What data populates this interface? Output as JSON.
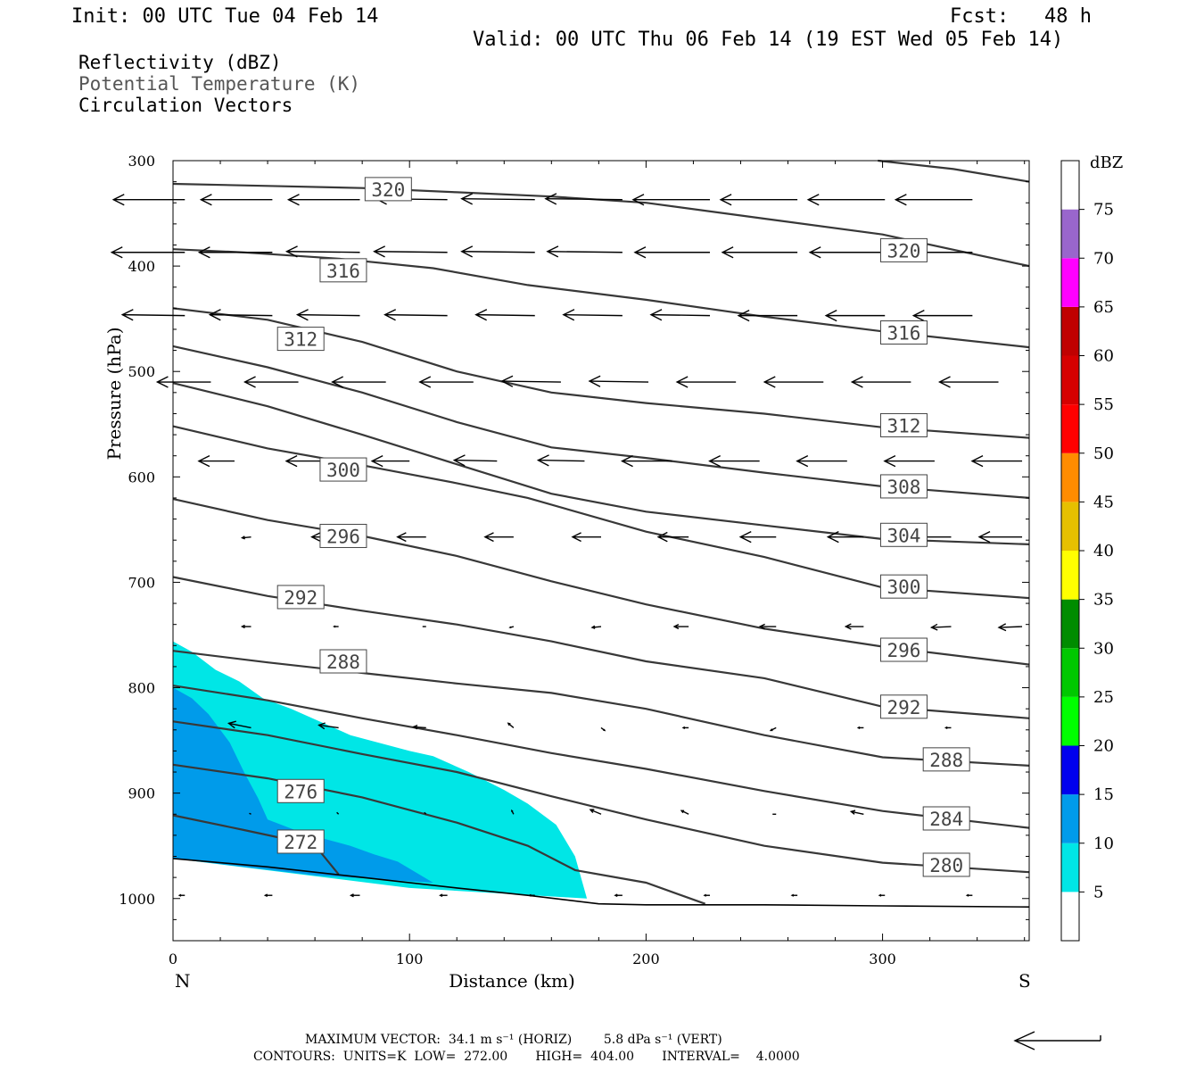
{
  "header": {
    "init": "Init: 00 UTC Tue 04 Feb 14",
    "fcst": "Fcst:   48 h",
    "valid": "Valid: 00 UTC Thu 06 Feb 14 (19 EST Wed 05 Feb 14)"
  },
  "fields": [
    {
      "label": "Reflectivity (dBZ)",
      "color": "#000000"
    },
    {
      "label": "Potential Temperature (K)",
      "color": "#555555"
    },
    {
      "label": "Circulation Vectors",
      "color": "#000000"
    }
  ],
  "footer": {
    "max_vector": "MAXIMUM VECTOR:  34.1 m s⁻¹ (HORIZ)        5.8 dPa s⁻¹ (VERT)",
    "contours": "CONTOURS:  UNITS=K  LOW=  272.00       HIGH=  404.00       INTERVAL=    4.0000"
  },
  "chart_data": {
    "type": "cross-section",
    "xlabel": "Distance (km)",
    "ylabel": "Pressure (hPa)",
    "xlim": [
      0,
      362
    ],
    "ylim": [
      1040,
      300
    ],
    "xticks": [
      0,
      100,
      200,
      300
    ],
    "yticks": [
      300,
      400,
      500,
      600,
      700,
      800,
      900,
      1000
    ],
    "end_labels": {
      "left": "N",
      "right": "S"
    },
    "colorbar": {
      "title": "dBZ",
      "ticks": [
        5,
        10,
        15,
        20,
        25,
        30,
        35,
        40,
        45,
        50,
        55,
        60,
        65,
        70,
        75
      ],
      "colors": [
        "#ffffff",
        "#00e6e6",
        "#009bea",
        "#0000ee",
        "#00ff00",
        "#00c800",
        "#008c00",
        "#ffff00",
        "#e6c000",
        "#ff8c00",
        "#ff0000",
        "#d60000",
        "#c00000",
        "#ff00ff",
        "#9966cc",
        "#ffffff"
      ]
    },
    "reflectivity": [
      {
        "dbz_min": 5,
        "color": "#00e6e6",
        "polygon": [
          [
            0,
            756
          ],
          [
            8,
            766
          ],
          [
            18,
            783
          ],
          [
            28,
            794
          ],
          [
            38,
            810
          ],
          [
            50,
            820
          ],
          [
            60,
            830
          ],
          [
            75,
            845
          ],
          [
            100,
            860
          ],
          [
            110,
            865
          ],
          [
            125,
            880
          ],
          [
            140,
            897
          ],
          [
            150,
            910
          ],
          [
            162,
            930
          ],
          [
            170,
            960
          ],
          [
            175,
            1000
          ],
          [
            100,
            990
          ],
          [
            0,
            962
          ]
        ]
      },
      {
        "dbz_min": 10,
        "color": "#009bea",
        "polygon": [
          [
            0,
            800
          ],
          [
            8,
            810
          ],
          [
            15,
            825
          ],
          [
            24,
            852
          ],
          [
            30,
            880
          ],
          [
            36,
            905
          ],
          [
            40,
            925
          ],
          [
            55,
            938
          ],
          [
            75,
            950
          ],
          [
            85,
            958
          ],
          [
            95,
            965
          ],
          [
            110,
            985
          ],
          [
            60,
            978
          ],
          [
            0,
            962
          ]
        ]
      }
    ],
    "theta_contours": [
      {
        "value": 320,
        "points": [
          [
            0,
            322
          ],
          [
            40,
            324
          ],
          [
            80,
            326
          ],
          [
            120,
            330
          ],
          [
            160,
            334
          ],
          [
            200,
            340
          ],
          [
            250,
            355
          ],
          [
            300,
            370
          ],
          [
            362,
            400
          ]
        ],
        "labels": [
          [
            91,
            327
          ],
          [
            309,
            385
          ]
        ]
      },
      {
        "value": 320,
        "points": [
          [
            298,
            300
          ],
          [
            330,
            308
          ],
          [
            362,
            320
          ]
        ],
        "labels": []
      },
      {
        "value": 316,
        "points": [
          [
            0,
            384
          ],
          [
            30,
            387
          ],
          [
            70,
            393
          ],
          [
            110,
            402
          ],
          [
            150,
            418
          ],
          [
            200,
            432
          ],
          [
            250,
            448
          ],
          [
            300,
            462
          ],
          [
            362,
            477
          ]
        ],
        "labels": [
          [
            72,
            404
          ],
          [
            309,
            463
          ]
        ]
      },
      {
        "value": 312,
        "points": [
          [
            0,
            440
          ],
          [
            40,
            451
          ],
          [
            80,
            472
          ],
          [
            120,
            500
          ],
          [
            160,
            520
          ],
          [
            200,
            530
          ],
          [
            250,
            540
          ],
          [
            300,
            553
          ],
          [
            362,
            563
          ]
        ],
        "labels": [
          [
            54,
            469
          ],
          [
            309,
            551
          ]
        ]
      },
      {
        "value": 308,
        "points": [
          [
            0,
            476
          ],
          [
            40,
            496
          ],
          [
            80,
            520
          ],
          [
            120,
            548
          ],
          [
            160,
            572
          ],
          [
            200,
            582
          ],
          [
            250,
            596
          ],
          [
            300,
            609
          ],
          [
            362,
            620
          ]
        ],
        "labels": [
          [
            309,
            609
          ]
        ]
      },
      {
        "value": 304,
        "points": [
          [
            0,
            511
          ],
          [
            40,
            533
          ],
          [
            80,
            560
          ],
          [
            120,
            588
          ],
          [
            160,
            616
          ],
          [
            200,
            633
          ],
          [
            250,
            646
          ],
          [
            300,
            659
          ],
          [
            362,
            664
          ]
        ],
        "labels": [
          [
            309,
            655
          ]
        ]
      },
      {
        "value": 300,
        "points": [
          [
            0,
            552
          ],
          [
            40,
            573
          ],
          [
            80,
            589
          ],
          [
            120,
            606
          ],
          [
            150,
            620
          ],
          [
            200,
            652
          ],
          [
            250,
            676
          ],
          [
            300,
            705
          ],
          [
            362,
            715
          ]
        ],
        "labels": [
          [
            72,
            593
          ],
          [
            309,
            704
          ]
        ]
      },
      {
        "value": 296,
        "points": [
          [
            0,
            621
          ],
          [
            40,
            641
          ],
          [
            80,
            656
          ],
          [
            120,
            675
          ],
          [
            160,
            699
          ],
          [
            200,
            721
          ],
          [
            250,
            744
          ],
          [
            300,
            761
          ],
          [
            362,
            778
          ]
        ],
        "labels": [
          [
            72,
            656
          ],
          [
            309,
            764
          ]
        ]
      },
      {
        "value": 292,
        "points": [
          [
            0,
            695
          ],
          [
            40,
            713
          ],
          [
            80,
            727
          ],
          [
            120,
            740
          ],
          [
            160,
            756
          ],
          [
            200,
            775
          ],
          [
            250,
            791
          ],
          [
            300,
            818
          ],
          [
            362,
            829
          ]
        ],
        "labels": [
          [
            54,
            714
          ],
          [
            309,
            818
          ]
        ]
      },
      {
        "value": 288,
        "points": [
          [
            0,
            765
          ],
          [
            40,
            776
          ],
          [
            80,
            786
          ],
          [
            120,
            796
          ],
          [
            160,
            805
          ],
          [
            200,
            820
          ],
          [
            250,
            845
          ],
          [
            300,
            866
          ],
          [
            362,
            874
          ]
        ],
        "labels": [
          [
            72,
            775
          ],
          [
            327,
            868
          ]
        ]
      },
      {
        "value": 284,
        "points": [
          [
            0,
            798
          ],
          [
            40,
            812
          ],
          [
            80,
            829
          ],
          [
            120,
            845
          ],
          [
            160,
            862
          ],
          [
            200,
            877
          ],
          [
            250,
            898
          ],
          [
            300,
            917
          ],
          [
            362,
            933
          ]
        ],
        "labels": [
          [
            327,
            924
          ]
        ]
      },
      {
        "value": 280,
        "points": [
          [
            0,
            832
          ],
          [
            40,
            845
          ],
          [
            80,
            863
          ],
          [
            120,
            880
          ],
          [
            160,
            903
          ],
          [
            200,
            925
          ],
          [
            250,
            950
          ],
          [
            300,
            966
          ],
          [
            362,
            975
          ]
        ],
        "labels": [
          [
            327,
            968
          ]
        ]
      },
      {
        "value": 276,
        "points": [
          [
            0,
            873
          ],
          [
            40,
            886
          ],
          [
            80,
            904
          ],
          [
            120,
            928
          ],
          [
            150,
            950
          ],
          [
            170,
            973
          ],
          [
            200,
            985
          ],
          [
            225,
            1005
          ]
        ],
        "labels": [
          [
            54,
            898
          ]
        ]
      },
      {
        "value": 272,
        "points": [
          [
            0,
            921
          ],
          [
            30,
            935
          ],
          [
            55,
            947
          ],
          [
            62,
            955
          ],
          [
            70,
            977
          ]
        ],
        "labels": [
          [
            54,
            946
          ]
        ]
      }
    ],
    "terrain": [
      [
        0,
        962
      ],
      [
        40,
        970
      ],
      [
        80,
        980
      ],
      [
        120,
        990
      ],
      [
        150,
        997
      ],
      [
        180,
        1005
      ],
      [
        200,
        1006
      ],
      [
        250,
        1006
      ],
      [
        300,
        1007
      ],
      [
        362,
        1008
      ]
    ],
    "vector_rows": [
      {
        "p": 337,
        "x": [
          5,
          42,
          79,
          116,
          153,
          190,
          227,
          264,
          301,
          338
        ],
        "u": [
          -80,
          -80,
          -80,
          -80,
          -82,
          -86,
          -86,
          -86,
          -86,
          -86
        ],
        "v": [
          0,
          0,
          0,
          -1,
          -1,
          -1,
          0,
          0,
          0,
          0
        ]
      },
      {
        "p": 387,
        "x": [
          5,
          42,
          79,
          116,
          153,
          190,
          227,
          264,
          301,
          338
        ],
        "u": [
          -82,
          -82,
          -82,
          -82,
          -82,
          -84,
          -84,
          -84,
          -84,
          -84
        ],
        "v": [
          0,
          0,
          -1,
          -1,
          -1,
          -1,
          0,
          0,
          0,
          0
        ]
      },
      {
        "p": 447,
        "x": [
          5,
          42,
          79,
          116,
          153,
          190,
          227,
          264,
          301,
          338
        ],
        "u": [
          -70,
          -70,
          -70,
          -70,
          -66,
          -66,
          -66,
          -66,
          -66,
          -66
        ],
        "v": [
          -1,
          -1,
          -1,
          -1,
          -1,
          -1,
          -1,
          0,
          0,
          0
        ]
      },
      {
        "p": 510,
        "x": [
          16,
          53,
          90,
          127,
          164,
          201,
          238,
          275,
          312,
          349
        ],
        "u": [
          -60,
          -60,
          -60,
          -60,
          -66,
          -66,
          -66,
          -66,
          -66,
          -66
        ],
        "v": [
          0,
          0,
          0,
          0,
          -1,
          -1,
          0,
          0,
          0,
          0
        ]
      },
      {
        "p": 585,
        "x": [
          26,
          63,
          100,
          137,
          174,
          211,
          248,
          285,
          322,
          359
        ],
        "u": [
          -40,
          -40,
          -42,
          -48,
          -52,
          -56,
          -56,
          -56,
          -56,
          -56
        ],
        "v": [
          0,
          0,
          0,
          -1,
          -1,
          0,
          0,
          0,
          0,
          0
        ]
      },
      {
        "p": 657,
        "x": [
          33,
          70,
          107,
          144,
          181,
          218,
          255,
          292,
          329,
          359
        ],
        "u": [
          -10,
          -30,
          -32,
          -32,
          -32,
          -34,
          -40,
          -40,
          -46,
          -48
        ],
        "v": [
          1,
          0,
          0,
          0,
          0,
          0,
          0,
          0,
          0,
          0
        ]
      },
      {
        "p": 742,
        "x": [
          33,
          70,
          107,
          144,
          181,
          218,
          255,
          292,
          329,
          359
        ],
        "u": [
          -10,
          -5,
          -4,
          -4,
          -10,
          -16,
          -18,
          -20,
          -22,
          -26
        ],
        "v": [
          0,
          0,
          0,
          1,
          1,
          0,
          0,
          0,
          1,
          1
        ]
      },
      {
        "p": 838,
        "x": [
          33,
          70,
          107,
          144,
          181,
          218,
          255,
          292,
          329
        ],
        "u": [
          -25,
          -22,
          -14,
          -6,
          4,
          -6,
          -6,
          -6,
          -6
        ],
        "v": [
          -5,
          -3,
          -1,
          -5,
          3,
          0,
          3,
          0,
          0
        ]
      },
      {
        "p": 920,
        "x": [
          33,
          70,
          107,
          144,
          181,
          218,
          255,
          292,
          329
        ],
        "u": [
          -2,
          -2,
          -2,
          -2,
          -12,
          -8,
          -4,
          -14,
          -14
        ],
        "v": [
          -1,
          -2,
          -2,
          -4,
          -5,
          -4,
          0,
          -3,
          -3
        ]
      },
      {
        "p": 997,
        "x": [
          5,
          42,
          79,
          116,
          153,
          190,
          227,
          264,
          301,
          338
        ],
        "u": [
          -6,
          -8,
          -10,
          -8,
          -6,
          -8,
          -6,
          -6,
          -6,
          -6
        ],
        "v": [
          0,
          0,
          0,
          0,
          0,
          0,
          0,
          0,
          0,
          0
        ]
      }
    ]
  }
}
